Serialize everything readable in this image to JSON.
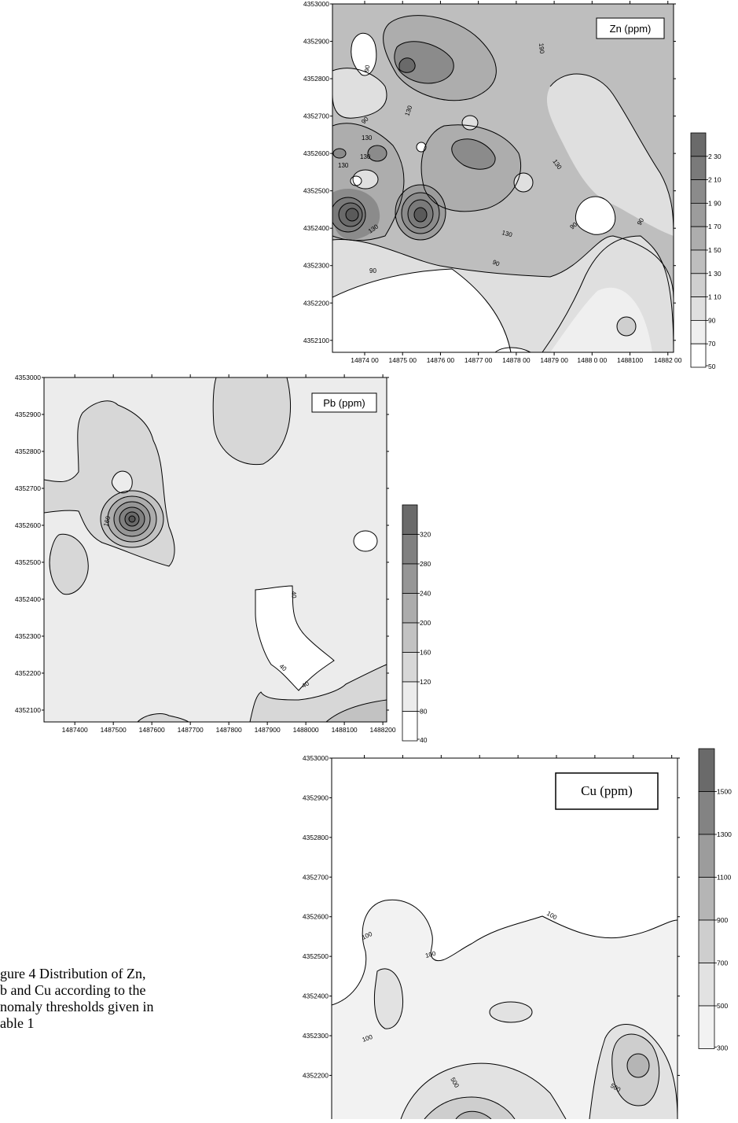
{
  "caption": {
    "lines": [
      "gure 4 Distribution of Zn,",
      "b and Cu according to the",
      "nomaly thresholds given in",
      "able 1"
    ]
  },
  "chart_data": [
    {
      "type": "contour",
      "title": "Zn (ppm)",
      "x_ticks": [
        "14874 00",
        "14875 00",
        "14876 00",
        "14877 00",
        "14878 00",
        "14879 00",
        "1488 0 00",
        "1488100",
        "14882 00"
      ],
      "x_tick_values": [
        1487400,
        1487500,
        1487600,
        1487700,
        1487800,
        1487900,
        1488000,
        1488100,
        1488200
      ],
      "y_ticks": [
        "4353000",
        "4352900",
        "4352800",
        "4352700",
        "4352600",
        "4352500",
        "4352400",
        "4352300",
        "4352200",
        "4352100"
      ],
      "y_tick_values": [
        4353000,
        4352900,
        4352800,
        4352700,
        4352600,
        4352500,
        4352400,
        4352300,
        4352200,
        4352100
      ],
      "contour_labels": [
        "90",
        "130",
        "130",
        "130",
        "130",
        "130",
        "190",
        "130",
        "90",
        "130",
        "90",
        "90",
        "90",
        "90"
      ],
      "legend_levels": [
        "2 30",
        "2 10",
        "1 90",
        "1 70",
        "1 50",
        "1 30",
        "1 10",
        "90",
        "70",
        "50"
      ],
      "colors": [
        "#6a6a6a",
        "#7a7a7a",
        "#8b8b8b",
        "#9c9c9c",
        "#adadad",
        "#bebebe",
        "#cfcfcf",
        "#dfdfdf",
        "#efefef",
        "#ffffff"
      ]
    },
    {
      "type": "contour",
      "title": "Pb (ppm)",
      "x_ticks": [
        "1487400",
        "1487500",
        "1487600",
        "1487700",
        "1487800",
        "1487900",
        "1488000",
        "1488100",
        "1488200"
      ],
      "x_tick_values": [
        1487400,
        1487500,
        1487600,
        1487700,
        1487800,
        1487900,
        1488000,
        1488100,
        1488200
      ],
      "y_ticks": [
        "4353000",
        "4352900",
        "4352800",
        "4352700",
        "4352600",
        "4352500",
        "4352400",
        "4352300",
        "4352200",
        "4352100"
      ],
      "y_tick_values": [
        4353000,
        4352900,
        4352800,
        4352700,
        4352600,
        4352500,
        4352400,
        4352300,
        4352200,
        4352100
      ],
      "contour_labels": [
        "160",
        "40",
        "40",
        "40"
      ],
      "legend_levels": [
        "320",
        "280",
        "240",
        "200",
        "160",
        "120",
        "80",
        "40"
      ],
      "colors": [
        "#6a6a6a",
        "#808080",
        "#969696",
        "#acacac",
        "#c2c2c2",
        "#d7d7d7",
        "#ececec",
        "#ffffff"
      ]
    },
    {
      "type": "contour",
      "title": "Cu (ppm)",
      "y_ticks": [
        "4353000",
        "4352900",
        "4352800",
        "4352700",
        "4352600",
        "4352500",
        "4352400",
        "4352300",
        "4352200"
      ],
      "y_tick_values": [
        4353000,
        4352900,
        4352800,
        4352700,
        4352600,
        4352500,
        4352400,
        4352300,
        4352200
      ],
      "contour_labels": [
        "100",
        "100",
        "100",
        "100",
        "500",
        "500"
      ],
      "legend_levels": [
        "1500",
        "1300",
        "1100",
        "900",
        "700",
        "500",
        "300"
      ],
      "colors": [
        "#6a6a6a",
        "#838383",
        "#9c9c9c",
        "#b5b5b5",
        "#cecece",
        "#e2e2e2",
        "#f2f2f2"
      ]
    }
  ]
}
